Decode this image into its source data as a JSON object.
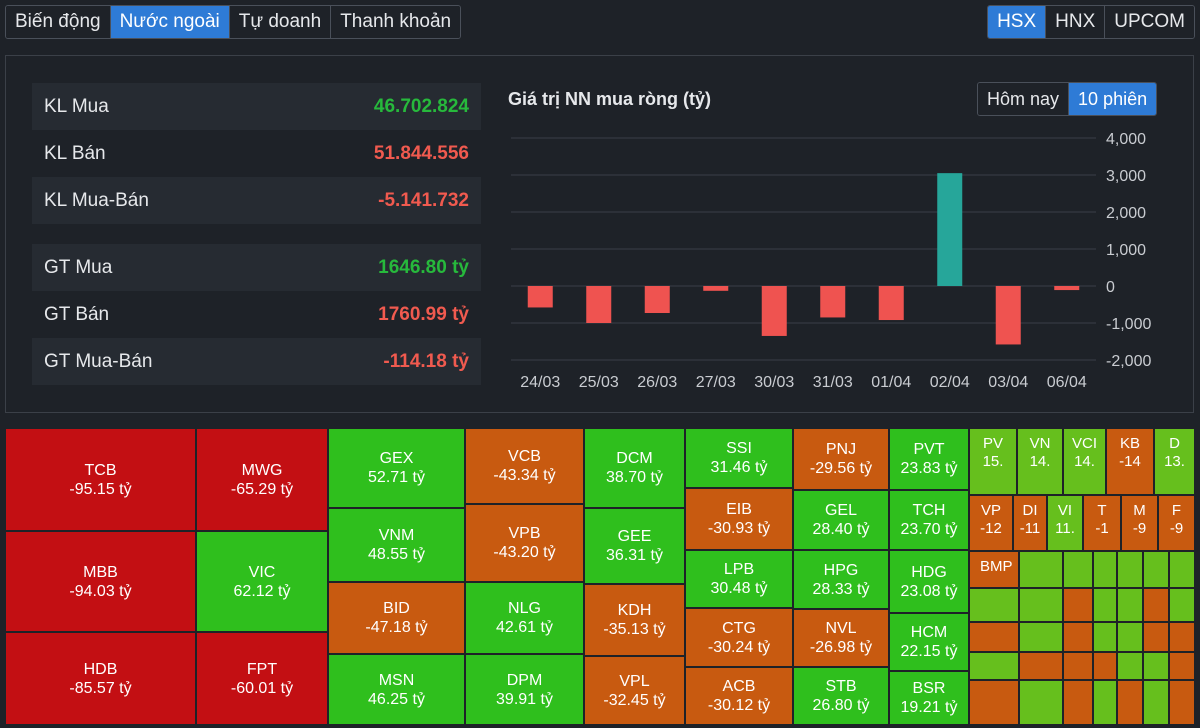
{
  "tabs": [
    "Biến động",
    "Nước ngoài",
    "Tự doanh",
    "Thanh khoản"
  ],
  "active_tab": 1,
  "exchanges": [
    "HSX",
    "HNX",
    "UPCOM"
  ],
  "active_exchange": 0,
  "stats": {
    "kl_mua": {
      "label": "KL Mua",
      "value": "46.702.824"
    },
    "kl_ban": {
      "label": "KL Bán",
      "value": "51.844.556"
    },
    "kl_net": {
      "label": "KL Mua-Bán",
      "value": "-5.141.732"
    },
    "gt_mua": {
      "label": "GT Mua",
      "value": "1646.80 tỷ"
    },
    "gt_ban": {
      "label": "GT Bán",
      "value": "1760.99 tỷ"
    },
    "gt_net": {
      "label": "GT Mua-Bán",
      "value": "-114.18 tỷ"
    }
  },
  "range_tabs": [
    "Hôm nay",
    "10 phiên"
  ],
  "active_range": 1,
  "chart_data": {
    "type": "bar",
    "title": "Giá trị NN mua ròng (tỷ)",
    "categories": [
      "24/03",
      "25/03",
      "26/03",
      "27/03",
      "30/03",
      "31/03",
      "01/04",
      "02/04",
      "03/04",
      "06/04"
    ],
    "values": [
      -580,
      -1000,
      -730,
      -130,
      -1350,
      -850,
      -920,
      3050,
      -1580,
      -110
    ],
    "ylim": [
      -2000,
      4000
    ],
    "yticks": [
      "4,000",
      "3,000",
      "2,000",
      "1,000",
      "0",
      "-1,000",
      "-2,000"
    ],
    "colors": {
      "positive": "#26a69a",
      "negative": "#ef5350"
    },
    "grid": true
  },
  "treemap": [
    {
      "sym": "TCB",
      "val": "-95.15 tỷ"
    },
    {
      "sym": "MBB",
      "val": "-94.03 tỷ"
    },
    {
      "sym": "HDB",
      "val": "-85.57 tỷ"
    },
    {
      "sym": "MWG",
      "val": "-65.29 tỷ"
    },
    {
      "sym": "VIC",
      "val": "62.12 tỷ"
    },
    {
      "sym": "FPT",
      "val": "-60.01 tỷ"
    },
    {
      "sym": "GEX",
      "val": "52.71 tỷ"
    },
    {
      "sym": "VNM",
      "val": "48.55 tỷ"
    },
    {
      "sym": "BID",
      "val": "-47.18 tỷ"
    },
    {
      "sym": "MSN",
      "val": "46.25 tỷ"
    },
    {
      "sym": "VCB",
      "val": "-43.34 tỷ"
    },
    {
      "sym": "VPB",
      "val": "-43.20 tỷ"
    },
    {
      "sym": "NLG",
      "val": "42.61 tỷ"
    },
    {
      "sym": "DPM",
      "val": "39.91 tỷ"
    },
    {
      "sym": "DCM",
      "val": "38.70 tỷ"
    },
    {
      "sym": "GEE",
      "val": "36.31 tỷ"
    },
    {
      "sym": "KDH",
      "val": "-35.13 tỷ"
    },
    {
      "sym": "VPL",
      "val": "-32.45 tỷ"
    },
    {
      "sym": "SSI",
      "val": "31.46 tỷ"
    },
    {
      "sym": "EIB",
      "val": "-30.93 tỷ"
    },
    {
      "sym": "LPB",
      "val": "30.48 tỷ"
    },
    {
      "sym": "CTG",
      "val": "-30.24 tỷ"
    },
    {
      "sym": "ACB",
      "val": "-30.12 tỷ"
    },
    {
      "sym": "PNJ",
      "val": "-29.56 tỷ"
    },
    {
      "sym": "GEL",
      "val": "28.40 tỷ"
    },
    {
      "sym": "HPG",
      "val": "28.33 tỷ"
    },
    {
      "sym": "NVL",
      "val": "-26.98 tỷ"
    },
    {
      "sym": "STB",
      "val": "26.80 tỷ"
    },
    {
      "sym": "PVT",
      "val": "23.83 tỷ"
    },
    {
      "sym": "TCH",
      "val": "23.70 tỷ"
    },
    {
      "sym": "HDG",
      "val": "23.08 tỷ"
    },
    {
      "sym": "HCM",
      "val": "22.15 tỷ"
    },
    {
      "sym": "BSR",
      "val": "19.21 tỷ"
    },
    {
      "sym": "PV",
      "val": "15."
    },
    {
      "sym": "VN",
      "val": "14."
    },
    {
      "sym": "VCI",
      "val": "14."
    },
    {
      "sym": "KB",
      "val": "-14"
    },
    {
      "sym": "D",
      "val": "13."
    },
    {
      "sym": "VP",
      "val": "-12"
    },
    {
      "sym": "DI",
      "val": "-11"
    },
    {
      "sym": "VI",
      "val": "11."
    },
    {
      "sym": "T",
      "val": "-1"
    },
    {
      "sym": "M",
      "val": "-9"
    },
    {
      "sym": "F",
      "val": "-9"
    },
    {
      "sym": "BMP",
      "val": ""
    }
  ]
}
